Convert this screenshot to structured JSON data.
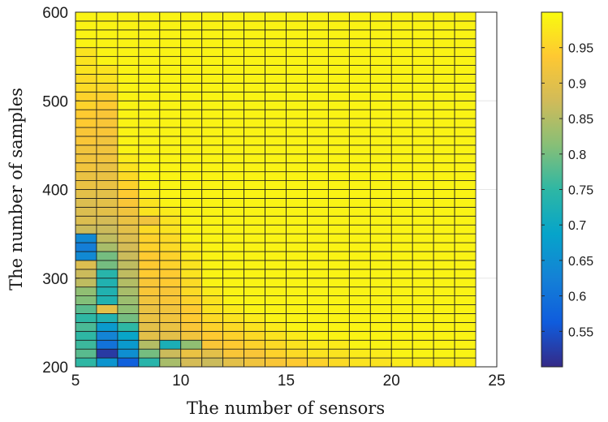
{
  "chart_data": {
    "type": "heatmap",
    "title": "",
    "xlabel": "The number of sensors",
    "ylabel": "The number of samples",
    "xlim": [
      5,
      25
    ],
    "ylim": [
      200,
      600
    ],
    "xticks": [
      5,
      10,
      15,
      20,
      25
    ],
    "yticks": [
      200,
      300,
      400,
      500,
      600
    ],
    "x_cell_start": 5,
    "x_cell_step": 1,
    "x_count": 19,
    "y_cell_start": 200,
    "y_cell_step": 10,
    "y_count": 40,
    "grid": true,
    "colormap": "parula",
    "colorbar": {
      "range": [
        0.5,
        1.0
      ],
      "ticks": [
        0.55,
        0.6,
        0.65,
        0.7,
        0.75,
        0.8,
        0.85,
        0.9,
        0.95
      ],
      "location": "right"
    },
    "columns": {
      "5": [
        0.75,
        0.78,
        0.76,
        0.75,
        0.77,
        0.75,
        0.78,
        0.81,
        0.82,
        0.86,
        0.87,
        0.89,
        0.64,
        0.62,
        0.64,
        0.87,
        0.89,
        0.89,
        0.89,
        0.9,
        0.91,
        0.91,
        0.92,
        0.92,
        0.92,
        0.93,
        0.93,
        0.94,
        0.94,
        0.95,
        0.95,
        0.96,
        0.96,
        0.97,
        0.97,
        0.97
      ],
      "6": [
        0.66,
        0.52,
        0.6,
        0.63,
        0.67,
        0.73,
        0.9,
        0.73,
        0.73,
        0.73,
        0.74,
        0.8,
        0.8,
        0.84,
        0.86,
        0.87,
        0.88,
        0.9,
        0.9,
        0.9,
        0.91,
        0.91,
        0.91,
        0.92,
        0.92,
        0.92,
        0.93,
        0.93,
        0.93,
        0.94,
        0.95,
        0.96,
        0.97,
        0.97
      ],
      "7": [
        0.57,
        0.65,
        0.67,
        0.69,
        0.75,
        0.8,
        0.82,
        0.83,
        0.84,
        0.85,
        0.86,
        0.86,
        0.87,
        0.88,
        0.89,
        0.9,
        0.91,
        0.92,
        0.93,
        0.94,
        0.95,
        0.96,
        0.97,
        0.98
      ],
      "8": [
        0.74,
        0.8,
        0.85,
        0.9,
        0.9,
        0.91,
        0.91,
        0.92,
        0.93,
        0.93,
        0.94,
        0.94,
        0.94,
        0.95,
        0.95,
        0.96,
        0.92,
        0.97,
        0.97,
        0.98
      ],
      "9": [
        0.84,
        0.87,
        0.72,
        0.9,
        0.91,
        0.92,
        0.92,
        0.93,
        0.93,
        0.94,
        0.94,
        0.95,
        0.95,
        0.96,
        0.96,
        0.97,
        0.97,
        0.98
      ],
      "10": [
        0.88,
        0.91,
        0.82,
        0.92,
        0.93,
        0.94,
        0.94,
        0.95,
        0.96,
        0.96,
        0.97,
        0.97,
        0.98,
        0.98
      ],
      "11": [
        0.87,
        0.9,
        0.93,
        0.94,
        0.95,
        0.96,
        0.97,
        0.97,
        0.98
      ],
      "12": [
        0.9,
        0.93,
        0.94,
        0.95,
        0.96,
        0.97,
        0.98
      ],
      "13": [
        0.92,
        0.93,
        0.95,
        0.96,
        0.97,
        0.98
      ],
      "14": [
        0.93,
        0.95,
        0.96,
        0.97,
        0.98
      ],
      "15": [
        0.94,
        0.96,
        0.97,
        0.98
      ],
      "16": [
        0.95,
        0.97,
        0.98
      ],
      "17": [
        0.96,
        0.97,
        0.98
      ],
      "18": [
        0.97,
        0.98
      ],
      "19": [
        0.97,
        0.98
      ],
      "20": [
        0.98
      ],
      "21": [
        0.98
      ],
      "22": [
        0.98
      ],
      "23": [
        0.98
      ]
    },
    "background_value": 0.99
  }
}
